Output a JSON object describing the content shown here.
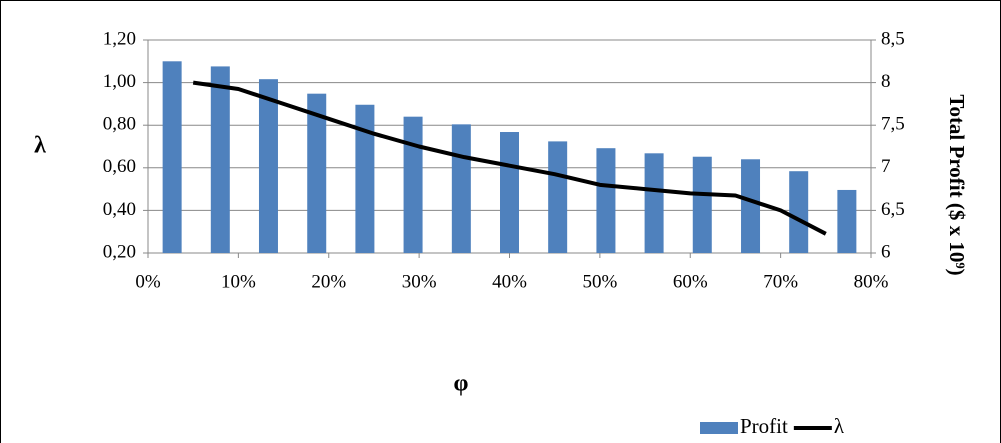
{
  "chart_data": {
    "type": "bar-line",
    "x_label": "φ",
    "y_label": "λ",
    "y2_label": "Total Profit ($ x 10⁹)",
    "xlim": [
      0,
      80
    ],
    "xticks": [
      {
        "value": 0,
        "label": "0%"
      },
      {
        "value": 10,
        "label": "10%"
      },
      {
        "value": 20,
        "label": "20%"
      },
      {
        "value": 30,
        "label": "30%"
      },
      {
        "value": 40,
        "label": "40%"
      },
      {
        "value": 50,
        "label": "50%"
      },
      {
        "value": 60,
        "label": "60%"
      },
      {
        "value": 70,
        "label": "70%"
      },
      {
        "value": 80,
        "label": "80%"
      }
    ],
    "ylim": [
      0.2,
      1.2
    ],
    "yticks": [
      {
        "value": 0.2,
        "label": "0,20"
      },
      {
        "value": 0.4,
        "label": "0,40"
      },
      {
        "value": 0.6,
        "label": "0,60"
      },
      {
        "value": 0.8,
        "label": "0,80"
      },
      {
        "value": 1.0,
        "label": "1,00"
      },
      {
        "value": 1.2,
        "label": "1,20"
      }
    ],
    "y2lim": [
      6,
      8.5
    ],
    "y2ticks": [
      6,
      {
        "value": 6.5,
        "label": "6,5"
      },
      7,
      {
        "value": 7.5,
        "label": "7,5"
      },
      8,
      {
        "value": 8.5,
        "label": "8,5"
      }
    ],
    "grid": true,
    "legend": "bottom-right",
    "series": [
      {
        "name": "Profit",
        "color": "#4f81bd",
        "axis": "y2",
        "x": [
          2.67,
          8,
          13.33,
          18.67,
          24,
          29.33,
          34.67,
          40,
          45.33,
          50.67,
          56,
          61.33,
          66.67,
          72,
          77.33
        ],
        "values": [
          8.25,
          8.19,
          8.04,
          7.87,
          7.74,
          7.6,
          7.51,
          7.42,
          7.31,
          7.23,
          7.17,
          7.13,
          7.1,
          6.96,
          6.74
        ]
      },
      {
        "name": "λ",
        "color": "#000000",
        "x": [
          5,
          10,
          15,
          20,
          25,
          30,
          35,
          40,
          45,
          50,
          55,
          60,
          65,
          70,
          75
        ],
        "values": [
          1.0,
          0.97,
          0.9,
          0.83,
          0.76,
          0.7,
          0.65,
          0.61,
          0.57,
          0.52,
          0.5,
          0.48,
          0.47,
          0.4,
          0.29
        ]
      }
    ]
  }
}
